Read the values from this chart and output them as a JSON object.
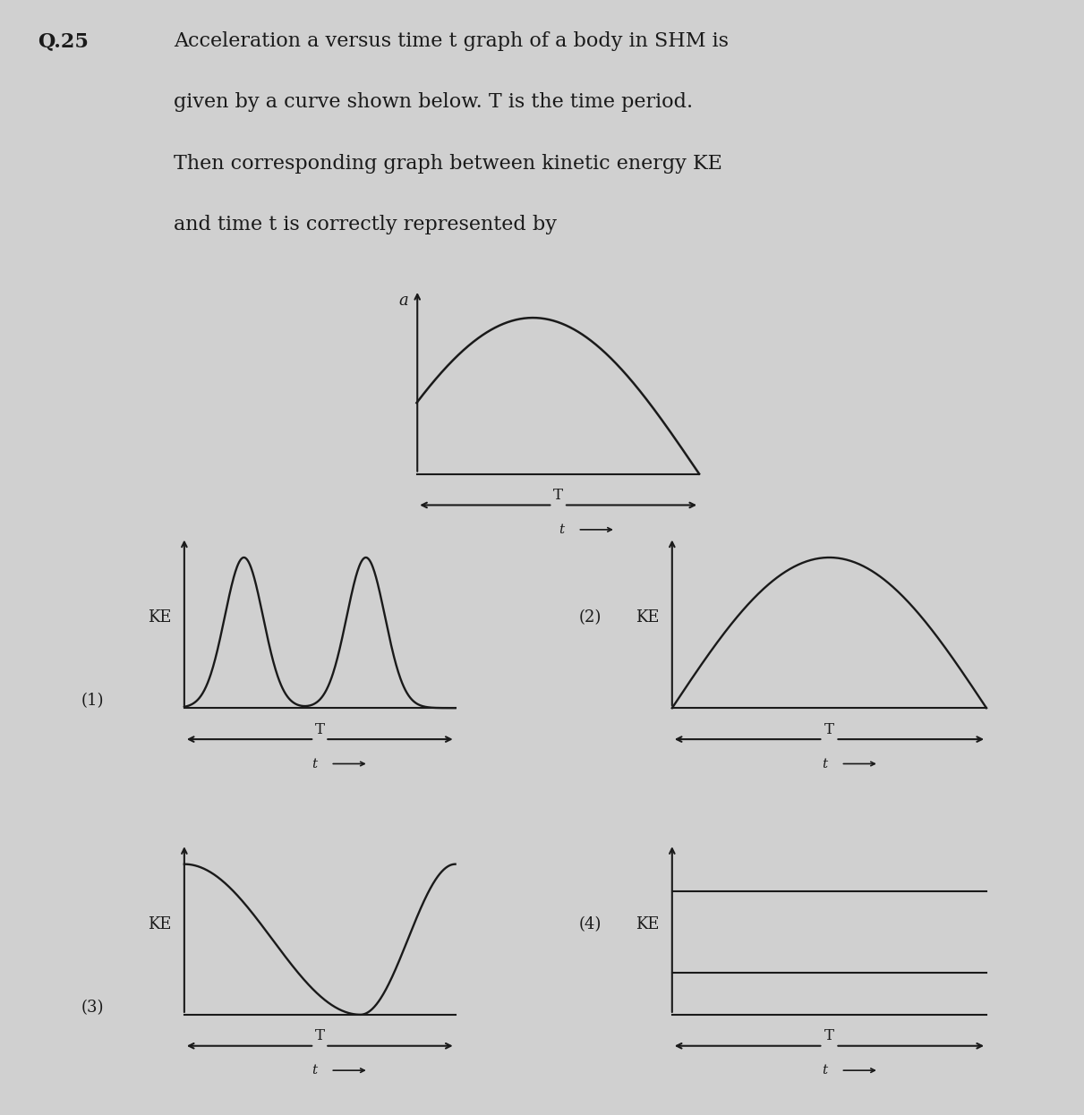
{
  "bg_color": "#d0d0d0",
  "line_color": "#1a1a1a",
  "fig_width": 12.11,
  "fig_height": 12.46,
  "font_size_question": 16,
  "font_size_label": 13,
  "question_label": "Q.25",
  "question_lines": [
    "Acceleration a versus time t graph of a body in SHM is",
    "given by a curve shown below. T is the time period.",
    "Then corresponding graph between kinetic energy KE",
    "and time t is correctly represented by"
  ]
}
